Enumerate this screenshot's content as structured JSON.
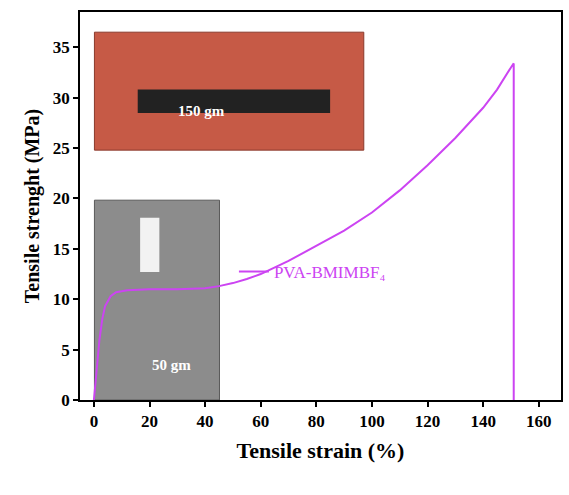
{
  "chart_data": {
    "type": "line",
    "x_label": "Tensile strain (%)",
    "y_label": "Tensile strenght (MPa)",
    "series": [
      {
        "name": "PVA-BMIMBF₄",
        "color": "#cc44f2",
        "line_style": "solid",
        "x": [
          0,
          1,
          2,
          3,
          4,
          6,
          8,
          12,
          20,
          30,
          40,
          45,
          50,
          55,
          60,
          70,
          80,
          90,
          100,
          110,
          120,
          130,
          140,
          145,
          150,
          151,
          151
        ],
        "values": [
          0,
          3,
          6,
          8,
          9.3,
          10.3,
          10.7,
          10.9,
          11,
          11,
          11.1,
          11.3,
          11.6,
          12,
          12.5,
          13.8,
          15.3,
          16.8,
          18.6,
          20.8,
          23.3,
          26,
          29,
          30.8,
          33,
          33.4,
          0
        ]
      }
    ],
    "xlim": [
      -5,
      168
    ],
    "xticks": [
      0,
      20,
      40,
      60,
      80,
      100,
      120,
      140,
      160
    ],
    "ylim": [
      0,
      38.5
    ],
    "yticks": [
      0,
      5,
      10,
      15,
      20,
      25,
      30,
      35
    ],
    "grid": false,
    "legend": "inside",
    "annotations": [
      "150 gm",
      "50 gm"
    ]
  }
}
